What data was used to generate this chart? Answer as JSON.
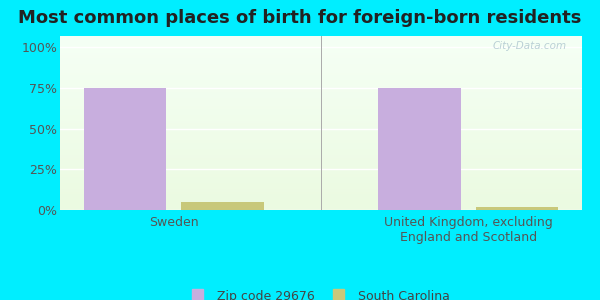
{
  "title": "Most common places of birth for foreign-born residents",
  "categories": [
    "Sweden",
    "United Kingdom, excluding\nEngland and Scotland"
  ],
  "zip_values": [
    75,
    75
  ],
  "sc_values": [
    5,
    2
  ],
  "zip_color": "#c8aede",
  "sc_color": "#cdd eighteen",
  "sc_color_actual": "#c8c87a",
  "background_outer": "#00eeff",
  "yticks": [
    0,
    25,
    50,
    75,
    100
  ],
  "ylim": [
    0,
    107
  ],
  "legend_zip_label": "Zip code 29676",
  "legend_sc_label": "South Carolina",
  "watermark": "City-Data.com",
  "title_fontsize": 13,
  "tick_fontsize": 9,
  "label_fontsize": 9
}
